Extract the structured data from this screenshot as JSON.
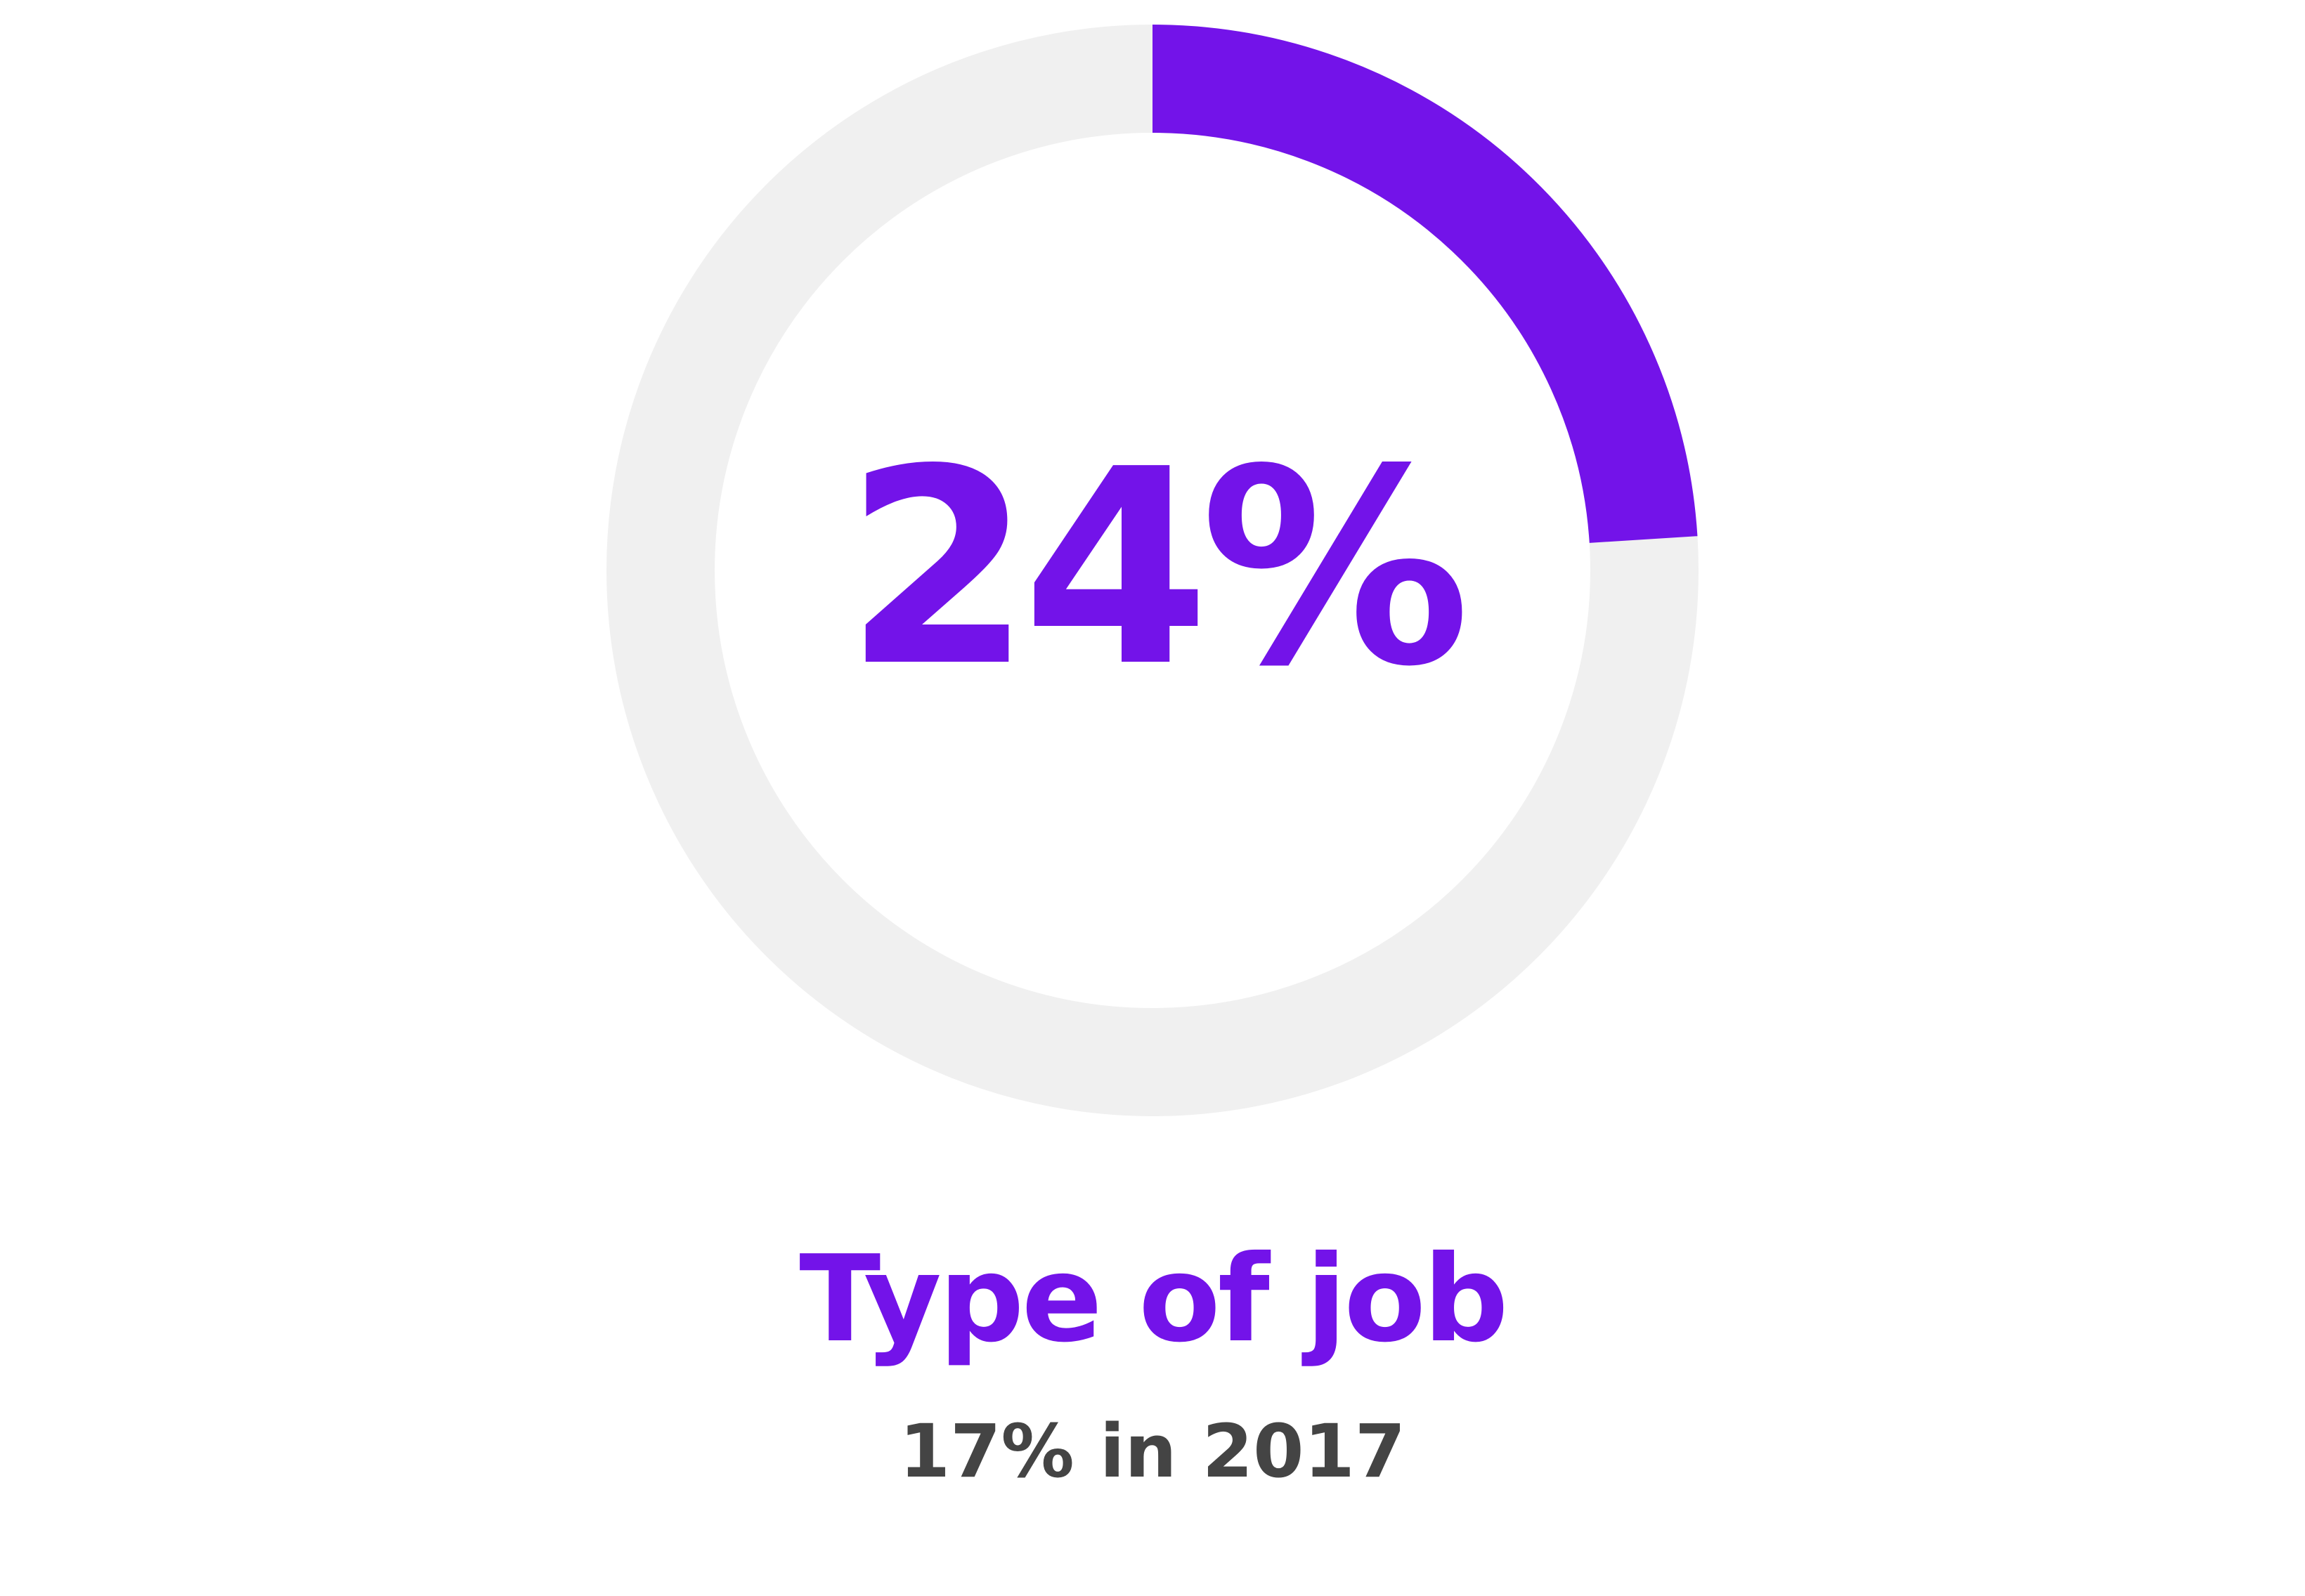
{
  "chart_data": {
    "type": "pie",
    "value_percent": 24,
    "center_label": "24%",
    "caption": "Type of job",
    "subcaption": "17% in 2017",
    "colors": {
      "value": "#7313e9",
      "track": "#f0f0f0",
      "subcaption": "#444444"
    }
  }
}
